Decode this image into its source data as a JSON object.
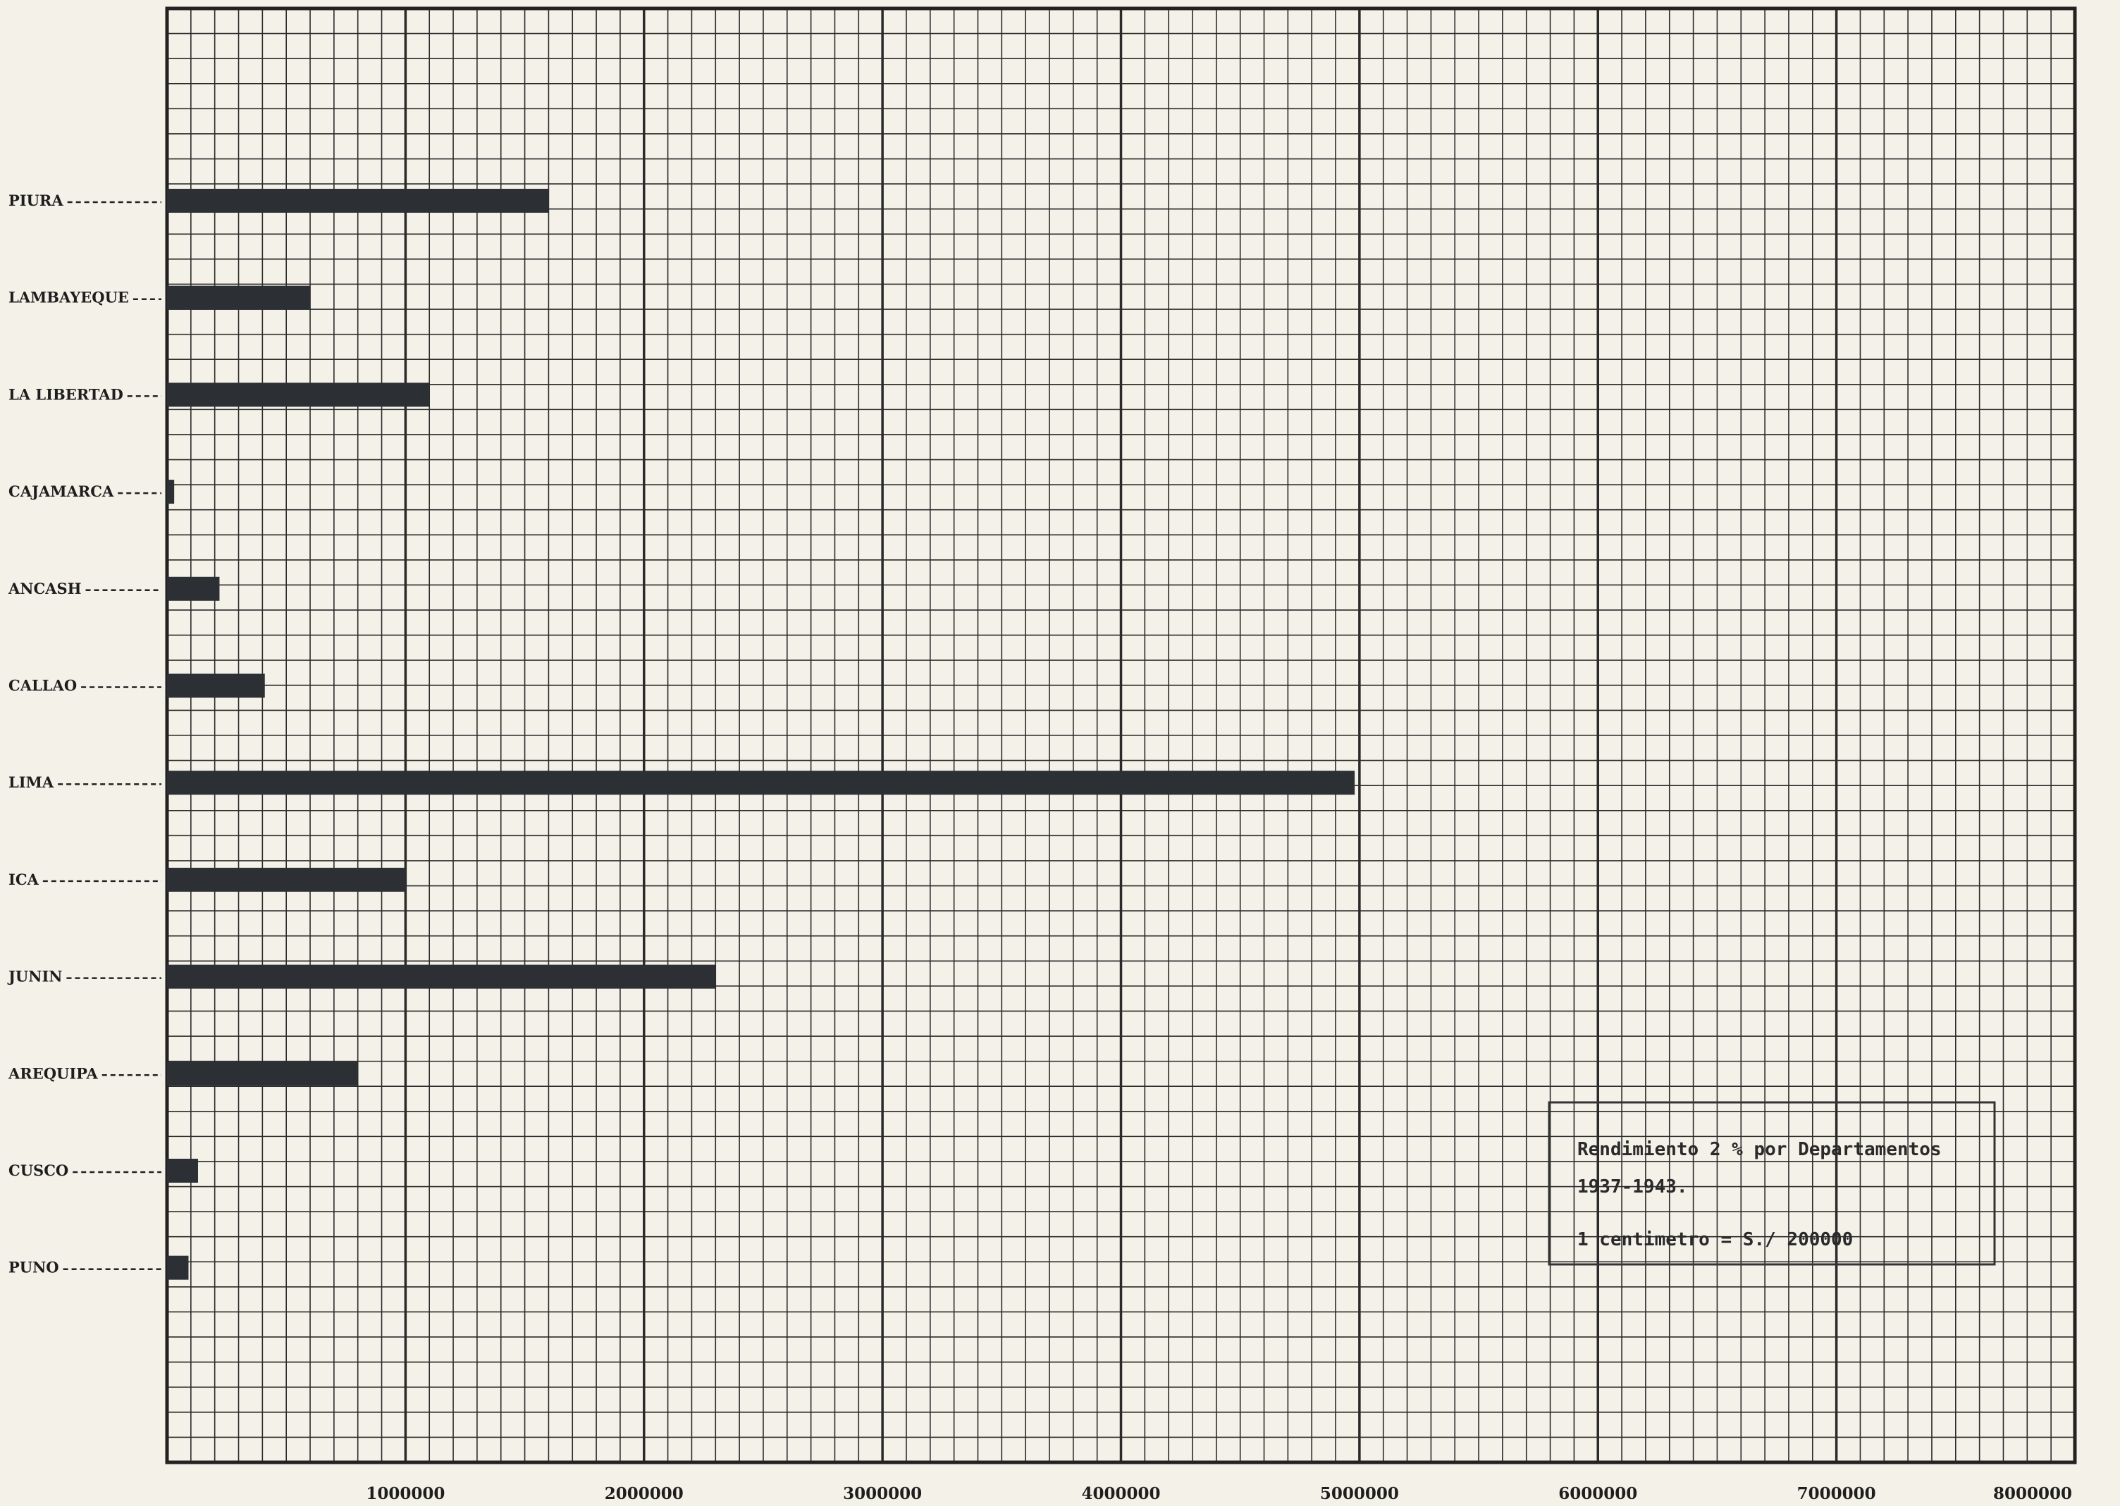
{
  "chart_data": {
    "type": "bar",
    "orientation": "horizontal",
    "categories": [
      "PIURA",
      "LAMBAYEQUE",
      "LA LIBERTAD",
      "CAJAMARCA",
      "ANCASH",
      "CALLAO",
      "LIMA",
      "ICA",
      "JUNIN",
      "AREQUIPA",
      "CUSCO",
      "PUNO"
    ],
    "values": [
      1600000,
      600000,
      1100000,
      30000,
      220000,
      410000,
      4980000,
      1000000,
      2300000,
      800000,
      130000,
      90000
    ],
    "x_ticks": [
      1000000,
      2000000,
      3000000,
      4000000,
      5000000,
      6000000,
      7000000,
      8000000
    ],
    "x_tick_labels": [
      "1000000",
      "2000000",
      "3000000",
      "4000000",
      "5000000",
      "6000000",
      "7000000",
      "8000000"
    ],
    "xlim": [
      0,
      8000000
    ],
    "grid": true,
    "legend_box": {
      "placement": "bottom-right",
      "line1": "Rendimiento 2 % por Departamentos",
      "line2": "1937-1943.",
      "line3": "1 centimetro = S./ 200000"
    },
    "colors": {
      "bar": "#2c2f33",
      "grid": "#2a2a2a",
      "paper": "#f4f1e8"
    }
  }
}
